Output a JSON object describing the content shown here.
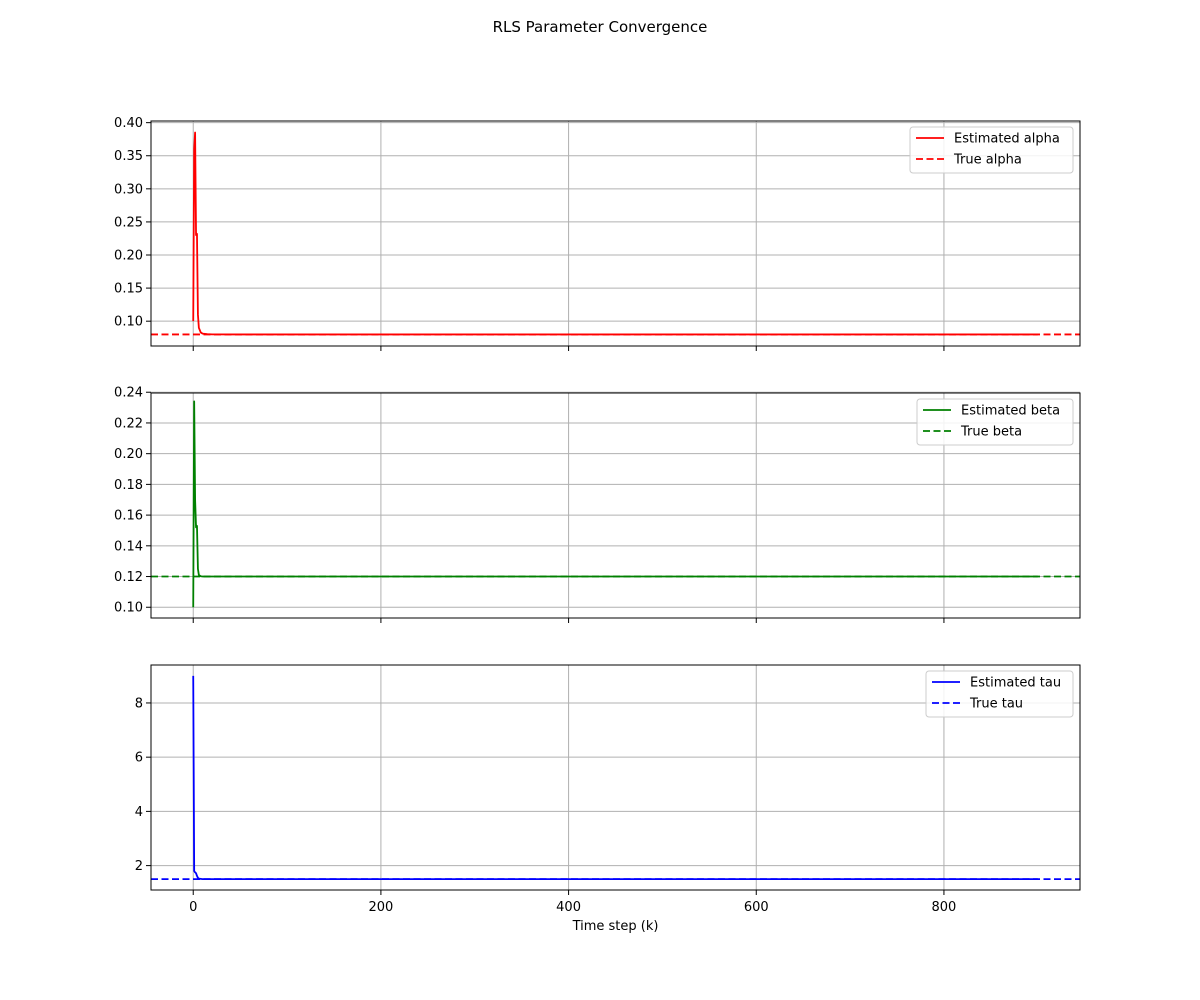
{
  "title": "RLS Parameter Convergence",
  "colors": {
    "alpha": "#ff0000",
    "beta": "#008000",
    "tau": "#0000ff",
    "grid": "#b0b0b0"
  },
  "chart_data": [
    {
      "type": "line",
      "title": "",
      "xlabel": "",
      "ylabel": "",
      "xlim": [
        -45,
        945
      ],
      "ylim": [
        0.0625,
        0.4025
      ],
      "xticks": [
        0,
        200,
        400,
        600,
        800
      ],
      "yticks": [
        0.1,
        0.15,
        0.2,
        0.25,
        0.3,
        0.35,
        0.4
      ],
      "ytick_labels": [
        "0.10",
        "0.15",
        "0.20",
        "0.25",
        "0.30",
        "0.35",
        "0.40"
      ],
      "grid": true,
      "legend": "upper-right",
      "series": [
        {
          "name": "Estimated alpha",
          "style": "solid",
          "color": "#ff0000",
          "x": [
            0,
            1,
            2,
            3,
            4,
            5,
            6,
            8,
            10,
            15,
            20,
            50,
            100,
            300,
            600,
            900
          ],
          "y": [
            0.1,
            0.36,
            0.385,
            0.23,
            0.232,
            0.11,
            0.09,
            0.083,
            0.0812,
            0.0805,
            0.0801,
            0.08,
            0.08,
            0.08,
            0.08,
            0.08
          ]
        },
        {
          "name": "True alpha",
          "style": "dashed",
          "color": "#ff0000",
          "constant": 0.08
        }
      ]
    },
    {
      "type": "line",
      "title": "",
      "xlabel": "",
      "ylabel": "",
      "xlim": [
        -45,
        945
      ],
      "ylim": [
        0.093,
        0.2395
      ],
      "xticks": [
        0,
        200,
        400,
        600,
        800
      ],
      "yticks": [
        0.1,
        0.12,
        0.14,
        0.16,
        0.18,
        0.2,
        0.22,
        0.24
      ],
      "ytick_labels": [
        "0.10",
        "0.12",
        "0.14",
        "0.16",
        "0.18",
        "0.20",
        "0.22",
        "0.24"
      ],
      "grid": true,
      "legend": "upper-right",
      "series": [
        {
          "name": "Estimated beta",
          "style": "solid",
          "color": "#008000",
          "x": [
            0,
            1,
            2,
            3,
            4,
            5,
            6,
            8,
            10,
            15,
            20,
            50,
            100,
            300,
            600,
            900
          ],
          "y": [
            0.1,
            0.234,
            0.17,
            0.152,
            0.153,
            0.125,
            0.121,
            0.1202,
            0.12,
            0.12,
            0.12,
            0.12,
            0.12,
            0.12,
            0.12,
            0.12
          ]
        },
        {
          "name": "True beta",
          "style": "dashed",
          "color": "#008000",
          "constant": 0.12
        }
      ]
    },
    {
      "type": "line",
      "title": "",
      "xlabel": "Time step (k)",
      "ylabel": "",
      "xlim": [
        -45,
        945
      ],
      "ylim": [
        1.1,
        9.4
      ],
      "xticks": [
        0,
        200,
        400,
        600,
        800
      ],
      "xtick_labels": [
        "0",
        "200",
        "400",
        "600",
        "800"
      ],
      "yticks": [
        2,
        4,
        6,
        8
      ],
      "ytick_labels": [
        "2",
        "4",
        "6",
        "8"
      ],
      "grid": true,
      "legend": "upper-right",
      "series": [
        {
          "name": "Estimated tau",
          "style": "solid",
          "color": "#0000ff",
          "x": [
            0,
            1,
            2,
            3,
            4,
            5,
            6,
            8,
            10,
            20,
            50,
            100,
            300,
            600,
            900
          ],
          "y": [
            9.0,
            1.8,
            1.75,
            1.72,
            1.62,
            1.55,
            1.52,
            1.51,
            1.5,
            1.5,
            1.5,
            1.5,
            1.5,
            1.5,
            1.5
          ]
        },
        {
          "name": "True tau",
          "style": "dashed",
          "color": "#0000ff",
          "constant": 1.5
        }
      ]
    }
  ]
}
